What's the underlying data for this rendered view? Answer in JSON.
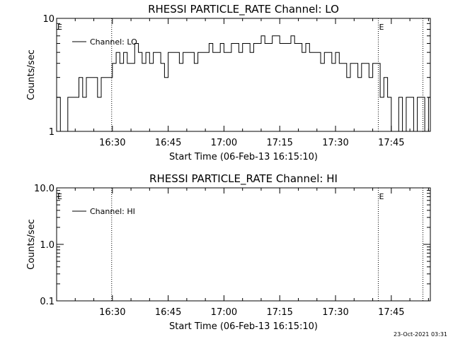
{
  "stamp": "23-Oct-2021 03:31",
  "chart_data": [
    {
      "type": "line",
      "title": "RHESSI PARTICLE_RATE Channel: LO",
      "xlabel": "Start Time (06-Feb-13 16:15:10)",
      "ylabel": "Counts/sec",
      "yscale": "log",
      "ylim": [
        1,
        10
      ],
      "yticks": [
        1,
        10
      ],
      "ytick_labels": [
        "1",
        "10"
      ],
      "xlim_minutes": [
        0,
        100.5
      ],
      "xticks": [
        15,
        30,
        45,
        60,
        75,
        90
      ],
      "xtick_labels": [
        "16:30",
        "16:45",
        "17:00",
        "17:15",
        "17:30",
        "17:45"
      ],
      "grid": false,
      "legend": "top-left",
      "series": [
        {
          "name": "Channel: LO",
          "x": [
            0,
            1,
            2,
            3,
            4,
            5,
            6,
            7,
            8,
            9,
            10,
            11,
            12,
            13,
            14,
            15,
            16,
            17,
            18,
            19,
            20,
            21,
            22,
            23,
            24,
            25,
            26,
            27,
            28,
            29,
            30,
            31,
            32,
            33,
            34,
            35,
            36,
            37,
            38,
            39,
            40,
            41,
            42,
            43,
            44,
            45,
            46,
            47,
            48,
            49,
            50,
            51,
            52,
            53,
            54,
            55,
            56,
            57,
            58,
            59,
            60,
            61,
            62,
            63,
            64,
            65,
            66,
            67,
            68,
            69,
            70,
            71,
            72,
            73,
            74,
            75,
            76,
            77,
            78,
            79,
            80,
            81,
            82,
            83,
            84,
            85,
            86,
            87,
            88,
            89,
            90,
            91,
            92,
            93,
            94,
            95,
            96,
            97,
            98,
            99,
            100
          ],
          "values": [
            2,
            1,
            1,
            2,
            2,
            2,
            3,
            2,
            3,
            3,
            3,
            2,
            3,
            3,
            3,
            4,
            5,
            4,
            5,
            4,
            4,
            6,
            5,
            4,
            5,
            4,
            5,
            5,
            4,
            3,
            5,
            5,
            5,
            4,
            5,
            5,
            5,
            4,
            5,
            5,
            5,
            6,
            5,
            5,
            6,
            5,
            5,
            6,
            6,
            5,
            6,
            6,
            5,
            6,
            6,
            7,
            6,
            6,
            7,
            7,
            6,
            6,
            6,
            7,
            6,
            6,
            5,
            6,
            5,
            5,
            5,
            4,
            5,
            5,
            4,
            5,
            4,
            4,
            3,
            4,
            4,
            3,
            4,
            4,
            3,
            4,
            4,
            2,
            3,
            2,
            1,
            1,
            2,
            1,
            2,
            2,
            1,
            2,
            2,
            1,
            2
          ]
        }
      ],
      "annotations": [
        {
          "text": "E",
          "x_minutes": 0
        },
        {
          "text": "E",
          "x_minutes": 86.5
        }
      ],
      "markers_minutes": [
        14.8,
        86.5,
        98.5
      ]
    },
    {
      "type": "line",
      "title": "RHESSI PARTICLE_RATE Channel: HI",
      "xlabel": "Start Time (06-Feb-13 16:15:10)",
      "ylabel": "Counts/sec",
      "yscale": "log",
      "ylim": [
        0.1,
        10
      ],
      "yticks": [
        0.1,
        1,
        10
      ],
      "ytick_labels": [
        "0.1",
        "1.0",
        "10.0"
      ],
      "xlim_minutes": [
        0,
        100.5
      ],
      "xticks": [
        15,
        30,
        45,
        60,
        75,
        90
      ],
      "xtick_labels": [
        "16:30",
        "16:45",
        "17:00",
        "17:15",
        "17:30",
        "17:45"
      ],
      "grid": false,
      "legend": "top-left",
      "series": [
        {
          "name": "Channel: HI",
          "x": [],
          "values": []
        }
      ],
      "annotations": [
        {
          "text": "E",
          "x_minutes": 0
        },
        {
          "text": "E",
          "x_minutes": 86.5
        }
      ],
      "markers_minutes": [
        14.8,
        86.5,
        98.5
      ]
    }
  ]
}
